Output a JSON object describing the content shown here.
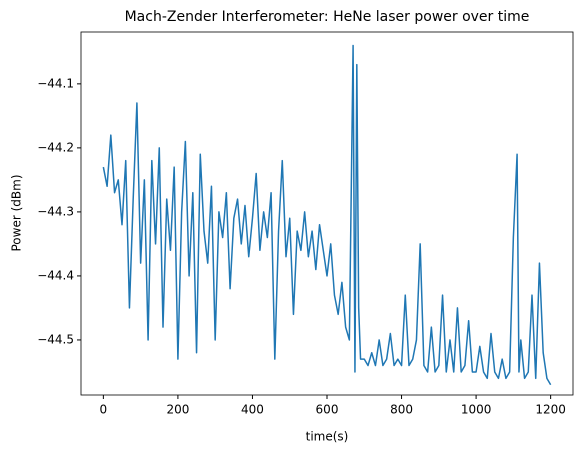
{
  "chart_data": {
    "type": "line",
    "title": "Mach-Zender Interferometer: HeNe laser power over time",
    "x_label": "time(s)",
    "y_label": "Power (dBm)",
    "x": [
      0,
      10,
      20,
      30,
      40,
      50,
      60,
      70,
      80,
      90,
      100,
      110,
      120,
      130,
      140,
      150,
      160,
      170,
      180,
      190,
      200,
      210,
      220,
      230,
      240,
      250,
      260,
      270,
      280,
      290,
      300,
      310,
      320,
      330,
      340,
      350,
      360,
      370,
      380,
      390,
      400,
      410,
      420,
      430,
      440,
      450,
      460,
      470,
      480,
      490,
      500,
      510,
      520,
      530,
      540,
      550,
      560,
      570,
      580,
      590,
      600,
      610,
      620,
      630,
      640,
      650,
      660,
      670,
      675,
      680,
      685,
      690,
      700,
      710,
      720,
      730,
      740,
      750,
      760,
      770,
      780,
      790,
      800,
      810,
      820,
      830,
      840,
      850,
      860,
      870,
      880,
      890,
      900,
      910,
      920,
      930,
      940,
      950,
      960,
      970,
      980,
      990,
      1000,
      1010,
      1020,
      1030,
      1040,
      1050,
      1060,
      1070,
      1080,
      1090,
      1100,
      1110,
      1115,
      1120,
      1130,
      1140,
      1150,
      1160,
      1170,
      1180,
      1190,
      1200
    ],
    "series": [
      {
        "name": "power",
        "color": "#1f77b4",
        "values": [
          -44.23,
          -44.26,
          -44.18,
          -44.27,
          -44.25,
          -44.32,
          -44.22,
          -44.45,
          -44.28,
          -44.13,
          -44.38,
          -44.25,
          -44.5,
          -44.22,
          -44.35,
          -44.2,
          -44.48,
          -44.28,
          -44.36,
          -44.23,
          -44.53,
          -44.3,
          -44.19,
          -44.4,
          -44.27,
          -44.52,
          -44.21,
          -44.33,
          -44.38,
          -44.26,
          -44.5,
          -44.3,
          -44.34,
          -44.27,
          -44.42,
          -44.31,
          -44.28,
          -44.35,
          -44.29,
          -44.37,
          -44.31,
          -44.24,
          -44.36,
          -44.3,
          -44.34,
          -44.27,
          -44.53,
          -44.33,
          -44.22,
          -44.37,
          -44.31,
          -44.46,
          -44.33,
          -44.36,
          -44.3,
          -44.37,
          -44.33,
          -44.39,
          -44.32,
          -44.36,
          -44.4,
          -44.35,
          -44.43,
          -44.46,
          -44.41,
          -44.48,
          -44.5,
          -44.04,
          -44.55,
          -44.07,
          -44.45,
          -44.53,
          -44.53,
          -44.54,
          -44.52,
          -44.54,
          -44.5,
          -44.54,
          -44.53,
          -44.49,
          -44.54,
          -44.53,
          -44.54,
          -44.43,
          -44.54,
          -44.53,
          -44.5,
          -44.35,
          -44.54,
          -44.55,
          -44.48,
          -44.55,
          -44.54,
          -44.43,
          -44.55,
          -44.5,
          -44.55,
          -44.45,
          -44.55,
          -44.54,
          -44.47,
          -44.55,
          -44.55,
          -44.51,
          -44.55,
          -44.56,
          -44.49,
          -44.55,
          -44.56,
          -44.53,
          -44.56,
          -44.55,
          -44.34,
          -44.21,
          -44.55,
          -44.5,
          -44.56,
          -44.55,
          -44.43,
          -44.56,
          -44.38,
          -44.52,
          -44.56,
          -44.57
        ]
      }
    ],
    "xlim": [
      -60,
      1260
    ],
    "ylim": [
      -44.586,
      -44.019
    ],
    "xticks": [
      0,
      200,
      400,
      600,
      800,
      1000,
      1200
    ],
    "yticks": [
      {
        "value": -44.5,
        "label": "−44.5"
      },
      {
        "value": -44.4,
        "label": "−44.4"
      },
      {
        "value": -44.3,
        "label": "−44.3"
      },
      {
        "value": -44.2,
        "label": "−44.2"
      },
      {
        "value": -44.1,
        "label": "−44.1"
      }
    ]
  }
}
